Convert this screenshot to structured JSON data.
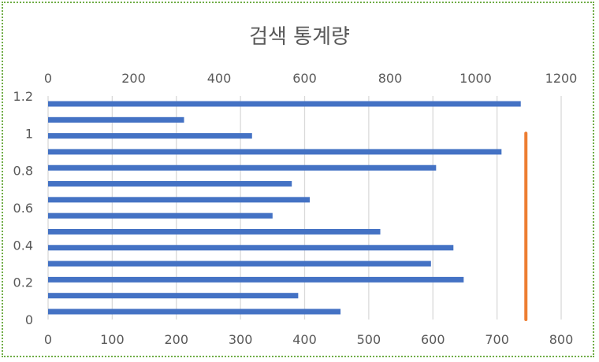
{
  "chart_data": {
    "type": "bar",
    "orientation": "horizontal",
    "title": "검색 통계량",
    "bottom_axis": {
      "ticks": [
        "0",
        "100",
        "200",
        "300",
        "400",
        "500",
        "600",
        "700",
        "800"
      ],
      "range": [
        0,
        800
      ]
    },
    "top_axis": {
      "ticks": [
        "0",
        "200",
        "400",
        "600",
        "800",
        "1000",
        "1200"
      ],
      "range": [
        0,
        1200
      ]
    },
    "left_axis": {
      "ticks": [
        "0",
        "0.2",
        "0.4",
        "0.6",
        "0.8",
        "1",
        "1.2"
      ],
      "range": [
        0,
        1.2
      ]
    },
    "grid": true,
    "bar_color": "#4472c4",
    "line_color": "#ed7d31",
    "bars": [
      {
        "value": 456
      },
      {
        "value": 390
      },
      {
        "value": 648
      },
      {
        "value": 597
      },
      {
        "value": 632
      },
      {
        "value": 518
      },
      {
        "value": 350
      },
      {
        "value": 408
      },
      {
        "value": 380
      },
      {
        "value": 605
      },
      {
        "value": 707
      },
      {
        "value": 318
      },
      {
        "value": 212
      },
      {
        "value": 737
      }
    ],
    "vertical_line": {
      "x": 745,
      "y_range": [
        0,
        1
      ]
    }
  }
}
